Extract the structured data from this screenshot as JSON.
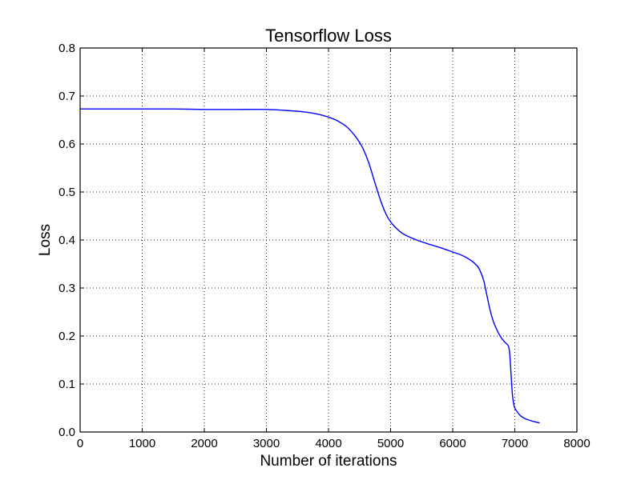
{
  "chart_data": {
    "type": "line",
    "title": "Tensorflow Loss",
    "xlabel": "Number of iterations",
    "ylabel": "Loss",
    "xlim": [
      0,
      8000
    ],
    "ylim": [
      0.0,
      0.8
    ],
    "xticks": [
      0,
      1000,
      2000,
      3000,
      4000,
      5000,
      6000,
      7000,
      8000
    ],
    "yticks": [
      0.0,
      0.1,
      0.2,
      0.3,
      0.4,
      0.5,
      0.6,
      0.7,
      0.8
    ],
    "ytick_labels": [
      "0.0",
      "0.1",
      "0.2",
      "0.3",
      "0.4",
      "0.5",
      "0.6",
      "0.7",
      "0.8"
    ],
    "grid": true,
    "legend": "none",
    "series": [
      {
        "color": "#0000ff",
        "x": [
          0,
          500,
          1000,
          1500,
          2000,
          2500,
          3000,
          3300,
          3600,
          3800,
          4000,
          4150,
          4300,
          4450,
          4550,
          4650,
          4750,
          4850,
          4950,
          5050,
          5200,
          5400,
          5600,
          5800,
          6000,
          6150,
          6300,
          6400,
          6450,
          6500,
          6550,
          6600,
          6650,
          6700,
          6750,
          6800,
          6850,
          6900,
          6920,
          6940,
          6960,
          6980,
          7000,
          7050,
          7100,
          7150,
          7200,
          7300,
          7400
        ],
        "y": [
          0.673,
          0.673,
          0.673,
          0.673,
          0.672,
          0.672,
          0.672,
          0.67,
          0.667,
          0.663,
          0.656,
          0.648,
          0.635,
          0.613,
          0.592,
          0.56,
          0.518,
          0.478,
          0.448,
          0.43,
          0.413,
          0.401,
          0.392,
          0.384,
          0.375,
          0.368,
          0.357,
          0.345,
          0.333,
          0.315,
          0.285,
          0.255,
          0.232,
          0.216,
          0.203,
          0.193,
          0.186,
          0.178,
          0.16,
          0.12,
          0.08,
          0.06,
          0.05,
          0.04,
          0.033,
          0.029,
          0.026,
          0.022,
          0.019
        ]
      }
    ]
  }
}
